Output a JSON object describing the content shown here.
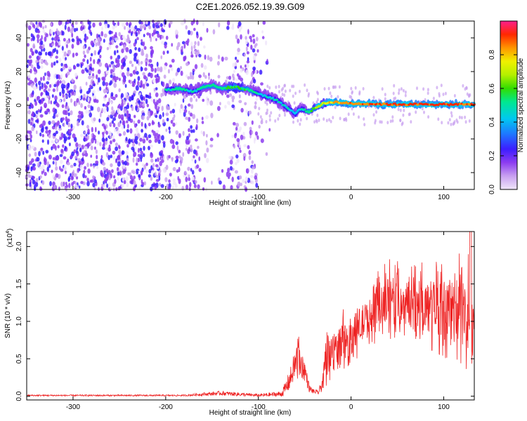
{
  "chart_data": [
    {
      "type": "heatmap",
      "title": "C2E1.2026.052.19.39.G09",
      "xlabel": "Height of straight line (km)",
      "ylabel": "Frequency (Hz)",
      "xlim": [
        -350,
        133
      ],
      "ylim": [
        -50,
        50
      ],
      "xticks": [
        -300,
        -200,
        -100,
        0,
        100
      ],
      "yticks": [
        -40,
        -20,
        0,
        20,
        40
      ],
      "colorbar": {
        "label": "Normalized spectral amplitude",
        "range": [
          0.0,
          1.0
        ],
        "ticks": [
          0.0,
          0.2,
          0.4,
          0.6,
          0.8
        ],
        "colors": [
          "#f0e6fa",
          "#c8a0f0",
          "#8c3cf0",
          "#3c1eff",
          "#1e78ff",
          "#00c8f0",
          "#00e890",
          "#32dc00",
          "#b4f000",
          "#f0f000",
          "#ff9600",
          "#ff2800",
          "#ff1e8c"
        ]
      },
      "signal_track": {
        "x": [
          -200,
          -185,
          -170,
          -160,
          -150,
          -140,
          -125,
          -110,
          -95,
          -80,
          -70,
          -60,
          -55,
          -45,
          -40,
          -30,
          -20,
          0,
          50,
          100,
          133
        ],
        "freq": [
          9,
          10,
          8,
          11,
          12,
          10,
          11,
          9,
          6,
          3,
          -1,
          -5,
          -2,
          -4,
          -2,
          1,
          2,
          1,
          0.5,
          0.5,
          0.5
        ],
        "amplitude": [
          0.45,
          0.5,
          0.45,
          0.5,
          0.5,
          0.5,
          0.55,
          0.5,
          0.45,
          0.45,
          0.45,
          0.4,
          0.45,
          0.5,
          0.6,
          0.7,
          0.8,
          0.85,
          0.9,
          0.9,
          0.88
        ]
      }
    },
    {
      "type": "line",
      "xlabel": "Height of straight line (km)",
      "ylabel": "SNR (10 * v/v)",
      "yscale_label": "(x10",
      "yscale_exp": "4",
      "yscale_close": ")",
      "xlim": [
        -350,
        133
      ],
      "ylim": [
        -0.05,
        2.2
      ],
      "xticks": [
        -300,
        -200,
        -100,
        0,
        100
      ],
      "yticks": [
        0.0,
        0.5,
        1.0,
        1.5,
        2.0
      ],
      "ytick_labels": [
        "0.0",
        "0.5",
        "1.0",
        "1.5",
        "2.0"
      ],
      "color": "#ee2222",
      "envelope": {
        "x": [
          -350,
          -180,
          -140,
          -100,
          -75,
          -70,
          -65,
          -60,
          -58,
          -55,
          -50,
          -45,
          -40,
          -35,
          -30,
          -28,
          -25,
          -20,
          -10,
          0,
          10,
          20,
          30,
          40,
          60,
          80,
          100,
          115,
          125,
          130,
          133
        ],
        "mean": [
          0.01,
          0.01,
          0.04,
          0.01,
          0.03,
          0.12,
          0.25,
          0.45,
          0.55,
          0.45,
          0.35,
          0.1,
          0.06,
          0.05,
          0.2,
          0.45,
          0.55,
          0.6,
          0.7,
          0.8,
          0.95,
          1.05,
          1.15,
          1.25,
          1.25,
          1.2,
          1.15,
          1.15,
          1.05,
          0.85,
          1.1
        ],
        "spread": [
          0.01,
          0.01,
          0.03,
          0.02,
          0.04,
          0.1,
          0.15,
          0.2,
          0.25,
          0.2,
          0.15,
          0.05,
          0.03,
          0.03,
          0.12,
          0.2,
          0.25,
          0.25,
          0.25,
          0.25,
          0.25,
          0.25,
          0.3,
          0.35,
          0.3,
          0.35,
          0.4,
          0.45,
          0.5,
          0.55,
          0.4
        ]
      }
    }
  ]
}
